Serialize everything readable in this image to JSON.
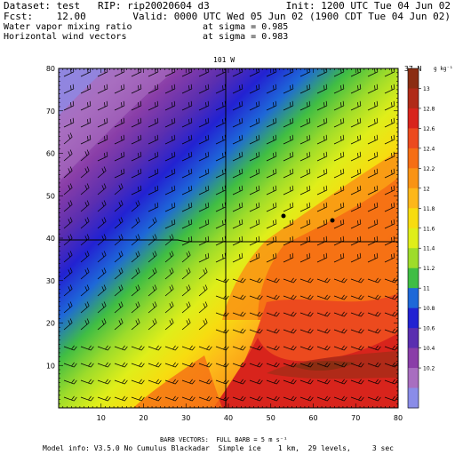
{
  "header": {
    "dataset_line": "Dataset: test   RIP: rip20020604 d3",
    "init": "Init: 1200 UTC Tue 04 Jun 02",
    "fcst_line": "Fcst:    12.00",
    "valid": "Valid: 0000 UTC Wed 05 Jun 02 (1900 CDT Tue 04 Jun 02)",
    "field1_name": "Water vapor mixing ratio",
    "field1_sigma": "at sigma = 0.985",
    "field2_name": "Horizontal wind vectors",
    "field2_sigma": "at sigma = 0.983"
  },
  "plot": {
    "top_label": "101 W",
    "right_label": "37 N",
    "x_ticks": [
      "10",
      "20",
      "30",
      "40",
      "50",
      "60",
      "70",
      "80"
    ],
    "y_ticks": [
      "10",
      "20",
      "30",
      "40",
      "50",
      "60",
      "70",
      "80"
    ],
    "colorbar_unit": "g kg⁻¹",
    "colorbar_labels": [
      "13",
      "12.8",
      "12.6",
      "12.4",
      "12.2",
      "12",
      "11.8",
      "11.6",
      "11.4",
      "11.2",
      "11",
      "10.8",
      "10.6",
      "10.4",
      "10.2"
    ],
    "colorbar_colors": [
      "#8b2d12",
      "#b02a18",
      "#d8241c",
      "#ec4a1e",
      "#f56e14",
      "#f99314",
      "#fdb71a",
      "#f7dc10",
      "#dfee1a",
      "#9edc2a",
      "#3fbd44",
      "#1e68d8",
      "#2222d2",
      "#5a2eb0",
      "#8a3ea8",
      "#a86ec0",
      "#8a8ce8"
    ]
  },
  "footer": {
    "barb_line": "BARB VECTORS:  FULL BARB = 5 m s⁻¹",
    "model_info": "Model info: V3.5.0 No Cumulus Blackadar  Simple ice    1 km,  29 levels,     3 sec"
  }
}
